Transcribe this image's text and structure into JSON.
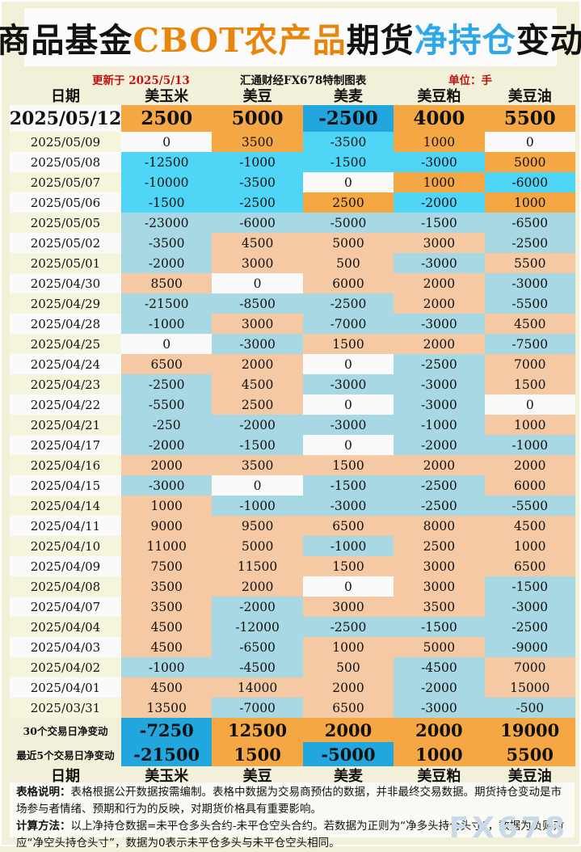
{
  "title": {
    "segments": [
      {
        "text": "商品基金",
        "color": "#111111"
      },
      {
        "text": "CBOT农产品",
        "color": "#E8860B"
      },
      {
        "text": "期货",
        "color": "#111111"
      },
      {
        "text": "净持仓",
        "color": "#2FA8E8"
      },
      {
        "text": "变动",
        "color": "#111111"
      }
    ]
  },
  "meta": {
    "updated": "更新于 2025/5/13",
    "source": "汇通财经FX678特制图表",
    "unit": "单位：手"
  },
  "chart_data": {
    "type": "table",
    "title": "商品基金CBOT农产品期货净持仓变动",
    "unit": "手",
    "columns": [
      "日期",
      "美玉米",
      "美豆",
      "美麦",
      "美豆粕",
      "美豆油"
    ],
    "rows": [
      {
        "date": "2025/05/12",
        "values": [
          2500,
          5000,
          -2500,
          4000,
          5500
        ]
      },
      {
        "date": "2025/05/09",
        "values": [
          0,
          3500,
          -3500,
          1000,
          0
        ]
      },
      {
        "date": "2025/05/08",
        "values": [
          -12500,
          -1000,
          -1500,
          -3000,
          5000
        ]
      },
      {
        "date": "2025/05/07",
        "values": [
          -10000,
          -3500,
          0,
          1000,
          -6000
        ]
      },
      {
        "date": "2025/05/06",
        "values": [
          -1500,
          -2500,
          2500,
          -2000,
          1000
        ]
      },
      {
        "date": "2025/05/05",
        "values": [
          -23000,
          -6000,
          -5000,
          -1500,
          -6500
        ]
      },
      {
        "date": "2025/05/02",
        "values": [
          -3500,
          4500,
          5000,
          3000,
          -2500
        ]
      },
      {
        "date": "2025/05/01",
        "values": [
          -2000,
          3000,
          500,
          -3000,
          5500
        ]
      },
      {
        "date": "2025/04/30",
        "values": [
          8500,
          0,
          6000,
          2000,
          -3000
        ]
      },
      {
        "date": "2025/04/29",
        "values": [
          -21500,
          -8500,
          -2500,
          2000,
          -5500
        ]
      },
      {
        "date": "2025/04/28",
        "values": [
          -1000,
          3000,
          -7000,
          -3000,
          4500
        ]
      },
      {
        "date": "2025/04/25",
        "values": [
          0,
          -3000,
          1500,
          2000,
          -7500
        ]
      },
      {
        "date": "2025/04/24",
        "values": [
          6500,
          2000,
          0,
          -2500,
          7000
        ]
      },
      {
        "date": "2025/04/23",
        "values": [
          -2500,
          4500,
          -3000,
          -3000,
          1500
        ]
      },
      {
        "date": "2025/04/22",
        "values": [
          -5500,
          2500,
          0,
          -3000,
          0
        ]
      },
      {
        "date": "2025/04/21",
        "values": [
          -250,
          -2000,
          -3000,
          -1000,
          1000
        ]
      },
      {
        "date": "2025/04/17",
        "values": [
          -2000,
          -1500,
          0,
          -2000,
          -1000
        ]
      },
      {
        "date": "2025/04/16",
        "values": [
          2000,
          3500,
          1500,
          2000,
          2000
        ]
      },
      {
        "date": "2025/04/15",
        "values": [
          -3000,
          0,
          -1500,
          -2500,
          6000
        ]
      },
      {
        "date": "2025/04/14",
        "values": [
          1000,
          -1000,
          -3000,
          -2500,
          -5500
        ]
      },
      {
        "date": "2025/04/11",
        "values": [
          9000,
          9500,
          6500,
          8000,
          4500
        ]
      },
      {
        "date": "2025/04/10",
        "values": [
          11000,
          5000,
          -1000,
          2500,
          1000
        ]
      },
      {
        "date": "2025/04/09",
        "values": [
          7500,
          11500,
          1500,
          3000,
          6500
        ]
      },
      {
        "date": "2025/04/08",
        "values": [
          3500,
          2000,
          0,
          3000,
          -1500
        ]
      },
      {
        "date": "2025/04/07",
        "values": [
          3500,
          -2000,
          3000,
          3500,
          -3000
        ]
      },
      {
        "date": "2025/04/04",
        "values": [
          4500,
          -12000,
          -2500,
          -1500,
          -2500
        ]
      },
      {
        "date": "2025/04/03",
        "values": [
          4500,
          -6500,
          1000,
          5000,
          -9000
        ]
      },
      {
        "date": "2025/04/02",
        "values": [
          -1000,
          -4500,
          500,
          -4500,
          7000
        ]
      },
      {
        "date": "2025/04/01",
        "values": [
          4500,
          14000,
          2000,
          -2000,
          15000
        ]
      },
      {
        "date": "2025/03/31",
        "values": [
          13500,
          -7000,
          6500,
          -3000,
          -500
        ]
      }
    ],
    "summary": [
      {
        "label": "30个交易日净变动",
        "values": [
          -7250,
          12500,
          2000,
          2000,
          19000
        ]
      },
      {
        "label": "最近5个交易日净变动",
        "values": [
          -21500,
          1500,
          -5000,
          1000,
          5500
        ]
      }
    ]
  },
  "footer": {
    "note_label": "表格说明：",
    "note": "表格根据公开数据按需编制。表格中数据为交易商预估的数据，并非最终交易数据。期货持仓变动是市场参与者情绪、预期和行为的反映，对期货价格具有重要影响。",
    "method_label": "计算方法：",
    "method": "以上净持仓数据=未平仓多头合约-未平仓空头合约。若数据为正则为“净多头持仓头寸”，数据为负则对应“净空头持仓头寸”，数据为0表示未平仓多头与未平仓空头相同。",
    "watermark": "FX678"
  },
  "colors": {
    "page_bg": "#F2F0D8",
    "bright_orange": "#F5A744",
    "deep_blue": "#21A6DE",
    "bright_cyan": "#4FD6F7",
    "peach": "#F4C9A4",
    "muted_blue": "#A9D8E5",
    "zero_bg": "#FAFAFA",
    "date_white": "#FAFAFA",
    "date_cream": "#F5F5DC",
    "red_text": "#C11212",
    "watermark": "#C9D9E8"
  }
}
